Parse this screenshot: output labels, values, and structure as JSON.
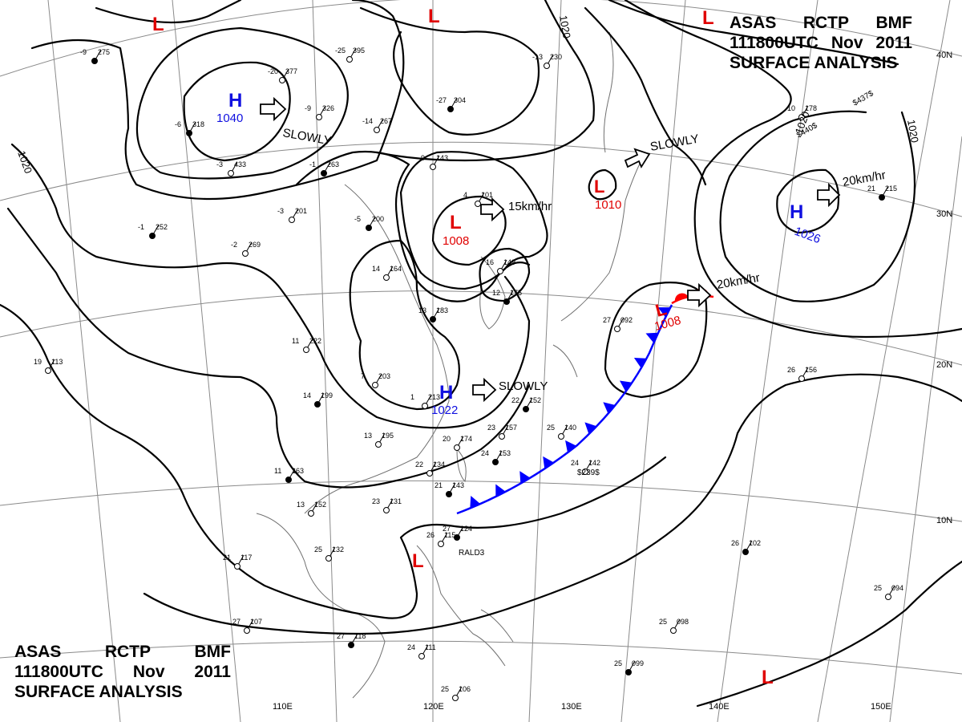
{
  "title_top": {
    "line1": [
      "ASAS",
      "RCTP",
      "BMF"
    ],
    "line2": [
      "111800UTC",
      "Nov",
      "2011"
    ],
    "line3": "SURFACE ANALYSIS"
  },
  "title_bottom": {
    "line1": [
      "ASAS",
      "RCTP",
      "BMF"
    ],
    "line2": [
      "111800UTC",
      "Nov",
      "2011"
    ],
    "line3": "SURFACE ANALYSIS"
  },
  "longitude_labels": [
    "110E",
    "120E",
    "130E",
    "140E",
    "150E"
  ],
  "latitude_labels": [
    "40N",
    "30N",
    "20N",
    "10N"
  ],
  "isobar_labels": [
    "1020",
    "1020",
    "1020",
    "1020"
  ],
  "pressure_centers": [
    {
      "type": "H",
      "value": "1040"
    },
    {
      "type": "H",
      "value": "1026"
    },
    {
      "type": "H",
      "value": "1022"
    },
    {
      "type": "L",
      "value": "1008"
    },
    {
      "type": "L",
      "value": "1010"
    },
    {
      "type": "L",
      "value": "1008"
    },
    {
      "type": "L",
      "value": ""
    },
    {
      "type": "L",
      "value": ""
    },
    {
      "type": "L",
      "value": ""
    },
    {
      "type": "L",
      "value": ""
    }
  ],
  "movement_labels": [
    "SLOWLY",
    "SLOWLY",
    "SLOWLY",
    "15km/hr",
    "20km/hr",
    "20km/hr"
  ],
  "station_plots": [
    {
      "t": "-9",
      "p": "275"
    },
    {
      "t": "-20",
      "p": "377"
    },
    {
      "t": "-25",
      "p": "395"
    },
    {
      "t": "-6",
      "p": "318"
    },
    {
      "t": "-9",
      "p": "326"
    },
    {
      "t": "-14",
      "p": "267"
    },
    {
      "t": "-27",
      "p": "304"
    },
    {
      "t": "-13",
      "p": "230"
    },
    {
      "t": "-3",
      "p": "433"
    },
    {
      "t": "-1",
      "p": "263"
    },
    {
      "t": "-9",
      "p": "143"
    },
    {
      "t": "-3",
      "p": "201"
    },
    {
      "t": "-5",
      "p": "200"
    },
    {
      "t": "4",
      "p": "101"
    },
    {
      "t": "-2",
      "p": "269"
    },
    {
      "t": "-1",
      "p": "252"
    },
    {
      "t": "14",
      "p": "164"
    },
    {
      "t": "11",
      "p": "222"
    },
    {
      "t": "13",
      "p": "183"
    },
    {
      "t": "7",
      "p": "203"
    },
    {
      "t": "1",
      "p": "213"
    },
    {
      "t": "14",
      "p": "199"
    },
    {
      "t": "13",
      "p": "195"
    },
    {
      "t": "20",
      "p": "174"
    },
    {
      "t": "22",
      "p": "152"
    },
    {
      "t": "25",
      "p": "140"
    },
    {
      "t": "23",
      "p": "157"
    },
    {
      "t": "24",
      "p": "153"
    },
    {
      "t": "22",
      "p": "134"
    },
    {
      "t": "24",
      "p": "142"
    },
    {
      "t": "11",
      "p": "163"
    },
    {
      "t": "13",
      "p": "152"
    },
    {
      "t": "23",
      "p": "131"
    },
    {
      "t": "21",
      "p": "143"
    },
    {
      "t": "25",
      "p": "132"
    },
    {
      "t": "21",
      "p": "117"
    },
    {
      "t": "27",
      "p": "124"
    },
    {
      "t": "26",
      "p": "115"
    },
    {
      "t": "27",
      "p": "107"
    },
    {
      "t": "27",
      "p": "118"
    },
    {
      "t": "24",
      "p": "111"
    },
    {
      "t": "25",
      "p": "106"
    },
    {
      "t": "26",
      "p": "102"
    },
    {
      "t": "25",
      "p": "094"
    },
    {
      "t": "25",
      "p": "098"
    },
    {
      "t": "25",
      "p": "099"
    },
    {
      "t": "26",
      "p": "156"
    },
    {
      "t": "27",
      "p": "092"
    },
    {
      "t": "21",
      "p": "215"
    },
    {
      "t": "10",
      "p": "178"
    },
    {
      "t": "19",
      "p": "113"
    },
    {
      "t": "12",
      "p": "175"
    },
    {
      "t": "16",
      "p": "149"
    }
  ],
  "misc_labels": [
    "RALD3",
    "$239$",
    "$437$",
    "$440$"
  ],
  "colors": {
    "isobar": "#000000",
    "grid": "#808080",
    "coast": "#707070",
    "high": "#1010e0",
    "low": "#e00000",
    "cold_front": "#0000ff",
    "warm_front": "#ff0000"
  }
}
